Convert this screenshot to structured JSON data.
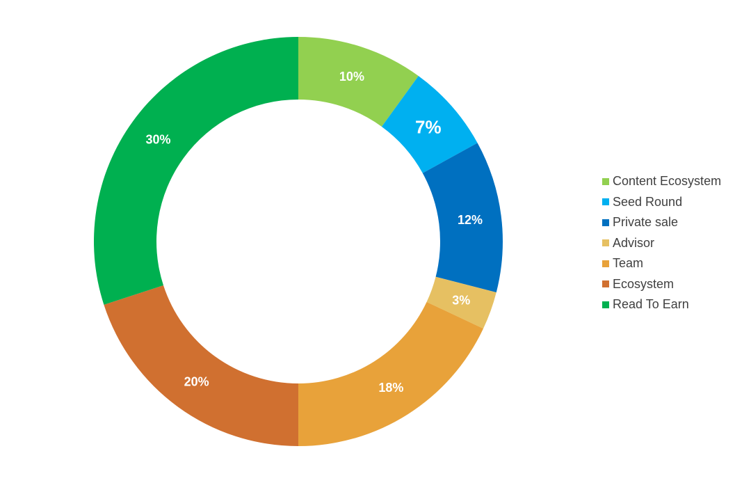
{
  "chart_data": {
    "type": "pie",
    "donut": true,
    "title": "",
    "legend_position": "right",
    "slices": [
      {
        "name": "Content Ecosystem",
        "value": 10,
        "label": "10%",
        "color": "#92D050"
      },
      {
        "name": "Seed Round",
        "value": 7,
        "label": "7%",
        "color": "#00B0F0"
      },
      {
        "name": "Private sale",
        "value": 12,
        "label": "12%",
        "color": "#0070C0"
      },
      {
        "name": "Advisor",
        "value": 3,
        "label": "3%",
        "color": "#E6C062"
      },
      {
        "name": "Team",
        "value": 18,
        "label": "18%",
        "color": "#E8A23A"
      },
      {
        "name": "Ecosystem",
        "value": 20,
        "label": "20%",
        "color": "#D07030"
      },
      {
        "name": "Read To Earn",
        "value": 30,
        "label": "30%",
        "color": "#00B050"
      }
    ]
  }
}
